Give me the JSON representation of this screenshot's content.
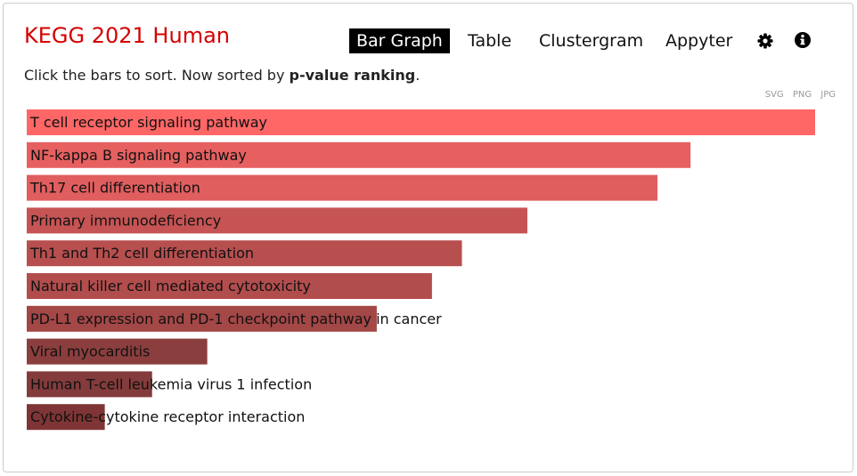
{
  "header": {
    "title": "KEGG 2021 Human",
    "subtitle_prefix": "Click the bars to sort. Now sorted by ",
    "subtitle_sort": "p-value ranking",
    "subtitle_suffix": "."
  },
  "nav": {
    "bar_graph": "Bar Graph",
    "table": "Table",
    "clustergram": "Clustergram",
    "appyter": "Appyter"
  },
  "icons": {
    "settings": "gear-icon",
    "info": "info-icon"
  },
  "exports": {
    "svg": "SVG",
    "png": "PNG",
    "jpg": "JPG"
  },
  "colors": {
    "top": "#ff6666",
    "bottom": "#7f3535"
  },
  "chart_data": {
    "type": "bar",
    "orientation": "horizontal",
    "categories": [
      "T cell receptor signaling pathway",
      "NF-kappa B signaling pathway",
      "Th17 cell differentiation",
      "Primary immunodeficiency",
      "Th1 and Th2 cell differentiation",
      "Natural killer cell mediated cytotoxicity",
      "PD-L1 expression and PD-1 checkpoint pathway in cancer",
      "Viral myocarditis",
      "Human T-cell leukemia virus 1 infection",
      "Cytokine-cytokine receptor interaction"
    ],
    "values": [
      1.0,
      0.842,
      0.8,
      0.635,
      0.552,
      0.514,
      0.444,
      0.229,
      0.159,
      0.099
    ],
    "colors": [
      "#ff6666",
      "#e66060",
      "#e05e5e",
      "#c65454",
      "#b74f4f",
      "#b24d4d",
      "#a34747",
      "#8b3e3e",
      "#833b3b",
      "#7f3535"
    ],
    "value_scale": "relative bar length (unitless)",
    "xlim": [
      0,
      1
    ]
  }
}
